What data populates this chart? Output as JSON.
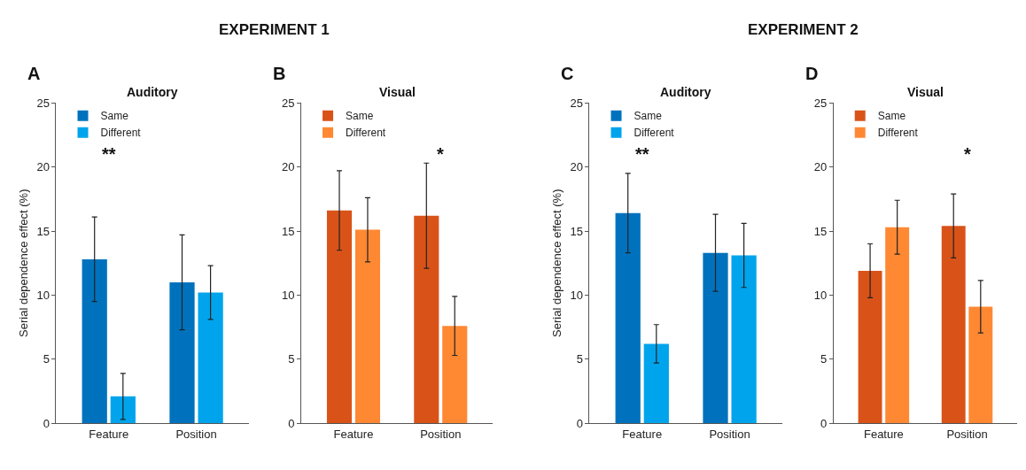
{
  "chart_data": [
    {
      "type": "bar",
      "title": "Auditory",
      "ylabel": "Serial dependence effect (%)",
      "categories": [
        "Feature",
        "Position"
      ],
      "ylim": [
        0,
        25
      ],
      "yticks": [
        0,
        5,
        10,
        15,
        20,
        25
      ],
      "legend": "top left",
      "annotations": [
        "A",
        "EXPERIMENT 1",
        "**"
      ],
      "series": [
        {
          "name": "Same",
          "color": "#0072bd",
          "values": [
            12.8,
            11.0
          ],
          "errors": [
            3.3,
            3.7
          ]
        },
        {
          "name": "Different",
          "color": "#00a4ec",
          "values": [
            2.1,
            10.2
          ],
          "errors": [
            1.8,
            2.1
          ]
        }
      ]
    },
    {
      "type": "bar",
      "title": "Visual",
      "categories": [
        "Feature",
        "Position"
      ],
      "ylim": [
        0,
        25
      ],
      "yticks": [
        0,
        5,
        10,
        15,
        20,
        25
      ],
      "legend": "top left",
      "annotations": [
        "B",
        "*"
      ],
      "series": [
        {
          "name": "Same",
          "color": "#d95319",
          "values": [
            16.6,
            16.2
          ],
          "errors": [
            3.1,
            4.1
          ]
        },
        {
          "name": "Different",
          "color": "#ff8833",
          "values": [
            15.1,
            7.6
          ],
          "errors": [
            2.5,
            2.3
          ]
        }
      ]
    },
    {
      "type": "bar",
      "title": "Auditory",
      "ylabel": "Serial dependence effect (%)",
      "categories": [
        "Feature",
        "Position"
      ],
      "ylim": [
        0,
        25
      ],
      "yticks": [
        0,
        5,
        10,
        15,
        20,
        25
      ],
      "legend": "top left",
      "annotations": [
        "C",
        "EXPERIMENT 2",
        "**"
      ],
      "series": [
        {
          "name": "Same",
          "color": "#0072bd",
          "values": [
            16.4,
            13.3
          ],
          "errors": [
            3.1,
            3.0
          ]
        },
        {
          "name": "Different",
          "color": "#00a4ec",
          "values": [
            6.2,
            13.1
          ],
          "errors": [
            1.5,
            2.5
          ]
        }
      ]
    },
    {
      "type": "bar",
      "title": "Visual",
      "categories": [
        "Feature",
        "Position"
      ],
      "ylim": [
        0,
        25
      ],
      "yticks": [
        0,
        5,
        10,
        15,
        20,
        25
      ],
      "legend": "top left",
      "annotations": [
        "D",
        "*"
      ],
      "series": [
        {
          "name": "Same",
          "color": "#d95319",
          "values": [
            11.9,
            15.4
          ],
          "errors": [
            2.1,
            2.5
          ]
        },
        {
          "name": "Different",
          "color": "#ff8833",
          "values": [
            15.3,
            9.1
          ],
          "errors": [
            2.1,
            2.05
          ]
        }
      ]
    }
  ]
}
